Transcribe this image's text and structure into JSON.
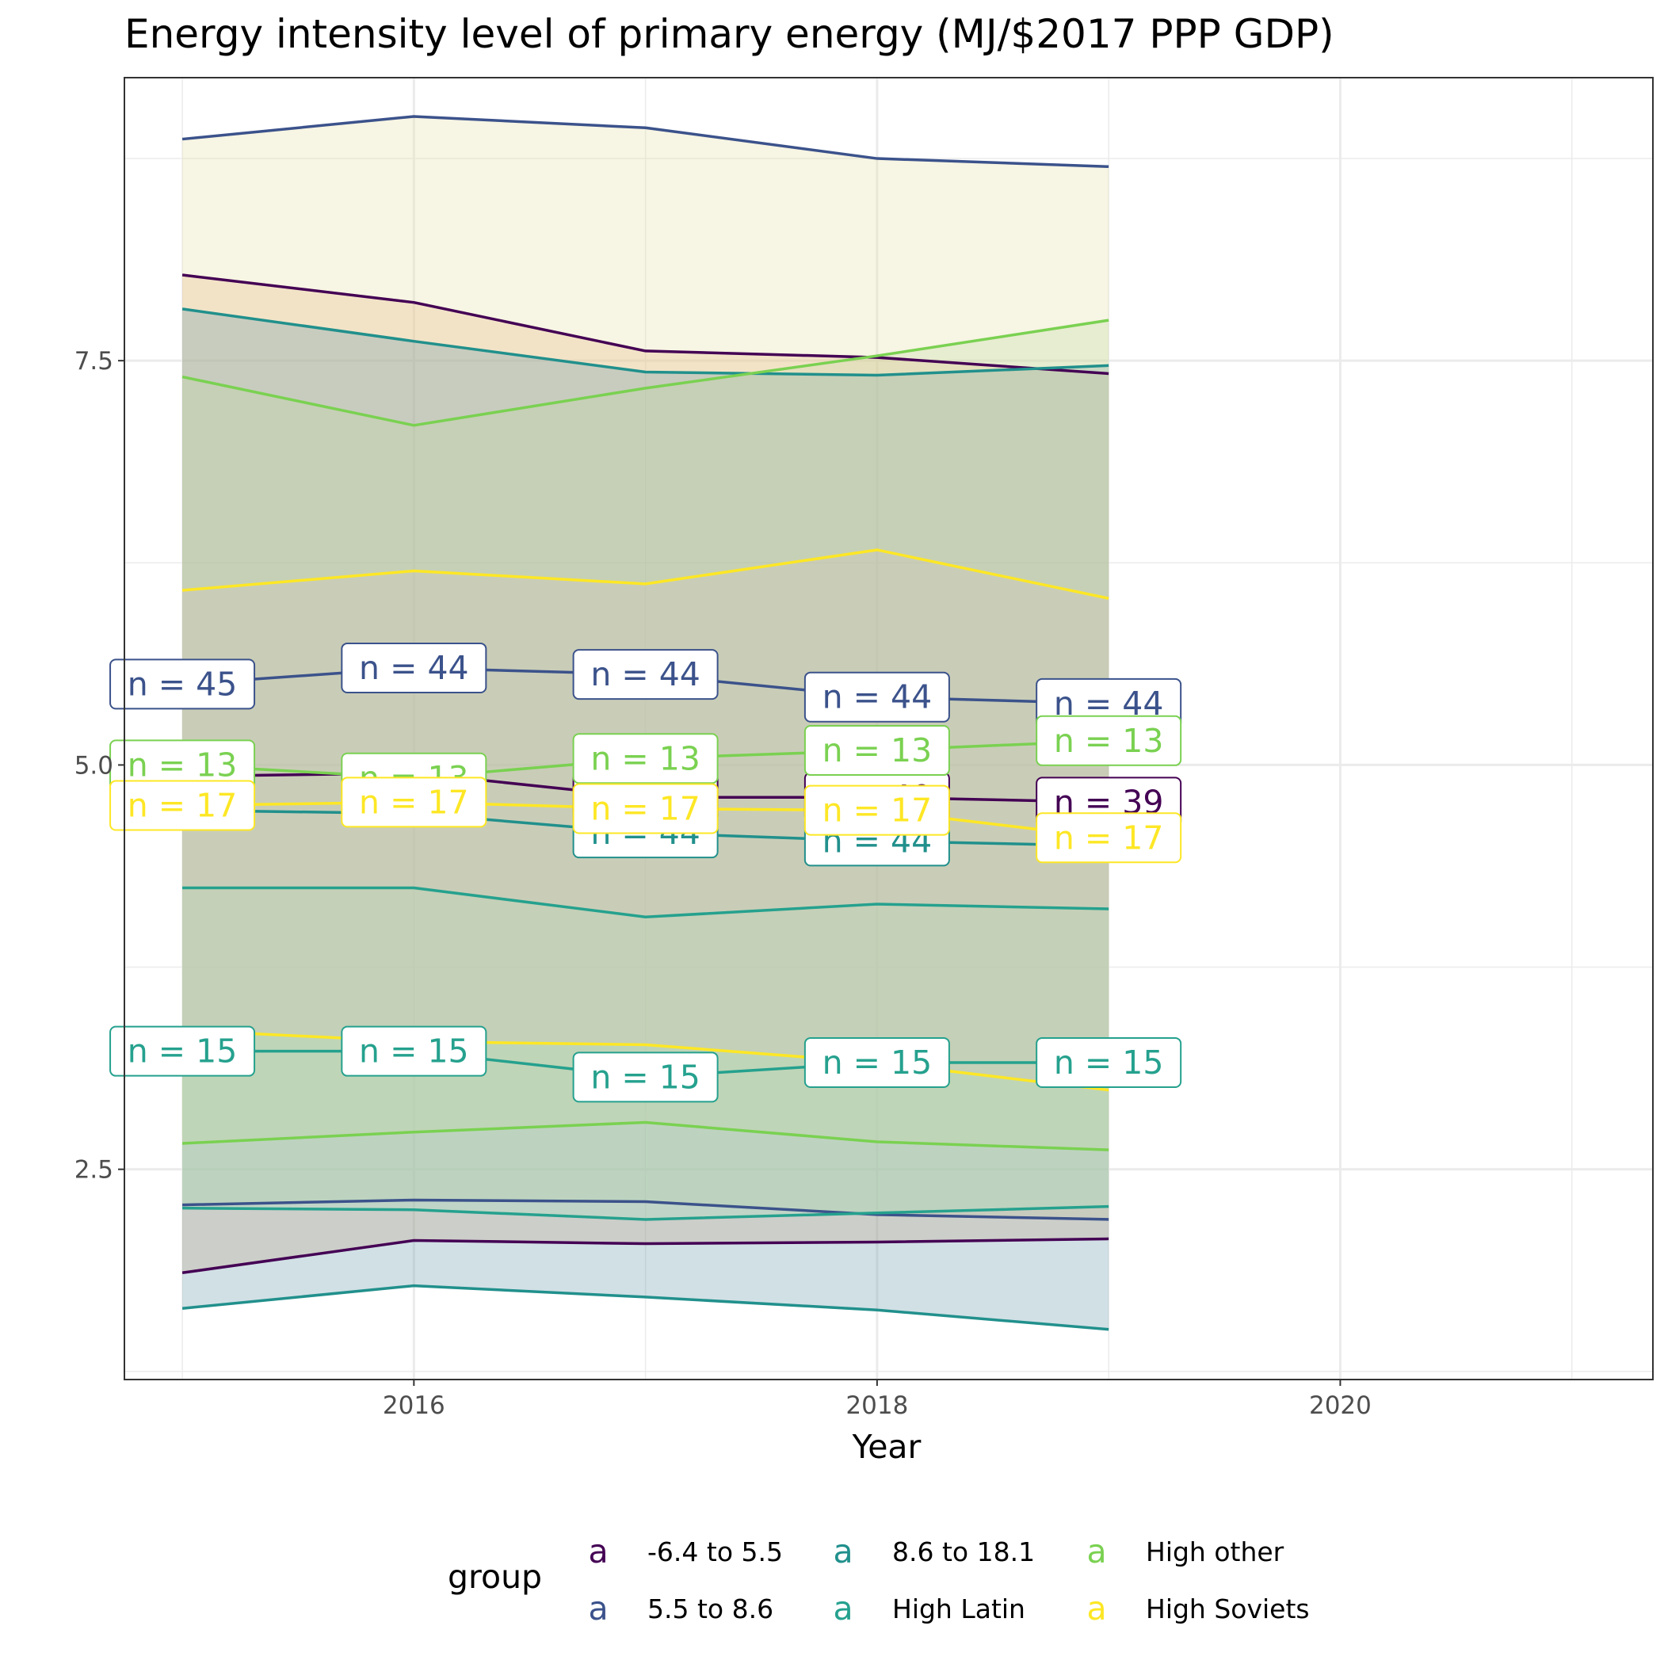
{
  "chart_data": {
    "type": "line",
    "title": "Energy intensity level of primary energy (MJ/$2017 PPP GDP)",
    "xlabel": "Year",
    "ylabel": "",
    "xlim": [
      2014.75,
      2021.35
    ],
    "ylim": [
      1.2,
      9.25
    ],
    "x_ticks": [
      2016,
      2018,
      2020
    ],
    "x_tick_labels": [
      "2016",
      "2018",
      "2020"
    ],
    "y_ticks": [
      2.5,
      5.0,
      7.5
    ],
    "y_tick_labels": [
      "2.5",
      "5.0",
      "7.5"
    ],
    "grid": true,
    "legend_title": "group",
    "legend_position": "bottom",
    "legend_key_glyph": "a",
    "x": [
      2015,
      2016,
      2017,
      2018,
      2019
    ],
    "series": [
      {
        "name": "-6.4 to 5.5",
        "color": "#440154",
        "fill": "#e7a97b",
        "label": "n = 39",
        "labels": [
          "",
          "",
          "n = 40",
          "n = 40",
          "n = 39"
        ],
        "median": [
          4.93,
          4.95,
          4.8,
          4.8,
          4.77
        ],
        "upper": [
          8.03,
          7.86,
          7.56,
          7.52,
          7.42
        ],
        "lower": [
          1.86,
          2.06,
          2.04,
          2.05,
          2.07
        ]
      },
      {
        "name": "5.5 to 8.6",
        "color": "#3b528b",
        "fill": "#e5dda2",
        "label": "n = 44",
        "labels": [
          "n = 45",
          "n = 44",
          "n = 44",
          "n = 44",
          "n = 44"
        ],
        "median": [
          5.5,
          5.6,
          5.56,
          5.42,
          5.38
        ],
        "upper": [
          8.87,
          9.01,
          8.94,
          8.75,
          8.7
        ],
        "lower": [
          2.28,
          2.31,
          2.3,
          2.22,
          2.19
        ]
      },
      {
        "name": "8.6 to 18.1",
        "color": "#21908c",
        "fill": "#6699aa",
        "label": "n = 44",
        "labels": [
          "",
          "",
          "n = 44",
          "n = 44",
          ""
        ],
        "median": [
          4.72,
          4.7,
          4.58,
          4.53,
          4.5
        ],
        "upper": [
          7.82,
          7.62,
          7.43,
          7.41,
          7.47
        ],
        "lower": [
          1.64,
          1.78,
          1.71,
          1.63,
          1.51
        ]
      },
      {
        "name": "High Latin",
        "color": "#25a18e",
        "fill": "#a4e6c4",
        "label": "n = 15",
        "labels": [
          "n = 15",
          "n = 15",
          "n = 15",
          "n = 15",
          "n = 15"
        ],
        "median": [
          3.23,
          3.23,
          3.07,
          3.16,
          3.16
        ],
        "upper": [
          4.24,
          4.24,
          4.06,
          4.14,
          4.11
        ],
        "lower": [
          2.26,
          2.25,
          2.19,
          2.23,
          2.27
        ]
      },
      {
        "name": "High other",
        "color": "#7ad151",
        "fill": "#c2d9a6",
        "label": "n = 13",
        "labels": [
          "n = 13",
          "n = 13",
          "n = 13",
          "n = 13",
          "n = 13"
        ],
        "median": [
          5.0,
          4.92,
          5.04,
          5.09,
          5.15
        ],
        "upper": [
          7.4,
          7.1,
          7.33,
          7.53,
          7.75
        ],
        "lower": [
          2.66,
          2.73,
          2.79,
          2.67,
          2.62
        ]
      },
      {
        "name": "High Soviets",
        "color": "#fde725",
        "fill": "#d1c7b8",
        "label": "n = 17",
        "labels": [
          "n = 17",
          "n = 17",
          "n = 17",
          "n = 17",
          "n = 17"
        ],
        "median": [
          4.75,
          4.77,
          4.73,
          4.72,
          4.55
        ],
        "upper": [
          6.08,
          6.2,
          6.12,
          6.33,
          6.03
        ],
        "lower": [
          3.36,
          3.29,
          3.27,
          3.16,
          2.99
        ]
      }
    ]
  }
}
